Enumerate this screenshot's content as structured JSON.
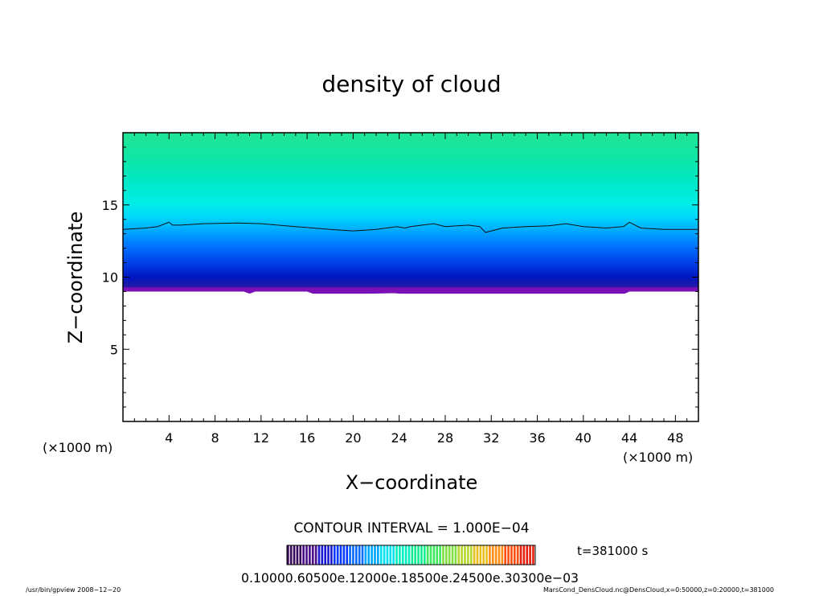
{
  "chart_data": {
    "type": "heatmap",
    "title": "density of cloud",
    "xlabel": "X−coordinate",
    "ylabel": "Z−coordinate",
    "x_unit": "(×1000 m)",
    "y_unit": "(×1000 m)",
    "xlim": [
      0,
      50
    ],
    "ylim": [
      0,
      20
    ],
    "x_ticks": [
      4,
      8,
      12,
      16,
      20,
      24,
      28,
      32,
      36,
      40,
      44,
      48
    ],
    "x_tick_labels": [
      "4",
      "8",
      "12",
      "16",
      "20",
      "24",
      "28",
      "32",
      "36",
      "40",
      "44",
      "48"
    ],
    "y_ticks": [
      5,
      10,
      15
    ],
    "y_tick_labels": [
      "5",
      "10",
      "15"
    ],
    "cloud_base_z": 9.0,
    "contour_line": {
      "x": [
        0,
        2,
        3,
        4,
        4.3,
        5,
        7,
        10,
        12,
        15,
        18,
        20,
        22,
        23.8,
        24.5,
        25,
        26,
        27,
        28,
        30,
        31,
        31.5,
        33,
        35,
        37,
        38.5,
        40,
        42,
        43.5,
        44,
        45,
        47,
        49,
        50
      ],
      "z": [
        13.3,
        13.4,
        13.5,
        13.8,
        13.6,
        13.6,
        13.7,
        13.75,
        13.7,
        13.5,
        13.3,
        13.2,
        13.3,
        13.5,
        13.4,
        13.5,
        13.6,
        13.7,
        13.5,
        13.6,
        13.5,
        13.1,
        13.4,
        13.5,
        13.55,
        13.7,
        13.5,
        13.4,
        13.5,
        13.8,
        13.4,
        13.3,
        13.3,
        13.3
      ]
    },
    "contour_interval_text": "CONTOUR INTERVAL = 1.000E−04",
    "time_label": "t=381000 s",
    "colorbar_labels_text": "0.10000.60500e.12000e.18500e.24500e.30300e−03",
    "colorbar_colors": [
      "#3a0a5a",
      "#4b0f8a",
      "#1a1ad6",
      "#0a3cff",
      "#0a6cff",
      "#00a8ff",
      "#00e0f0",
      "#00f0c0",
      "#10ee90",
      "#40e860",
      "#80e040",
      "#b8d830",
      "#e8c020",
      "#ff9018",
      "#ff5010",
      "#e82010"
    ]
  },
  "footer": {
    "left": "/usr/bin/gpview   2008−12−20",
    "right": "MarsCond_DensCloud.nc@DensCloud,x=0:50000,z=0:20000,t=381000"
  }
}
